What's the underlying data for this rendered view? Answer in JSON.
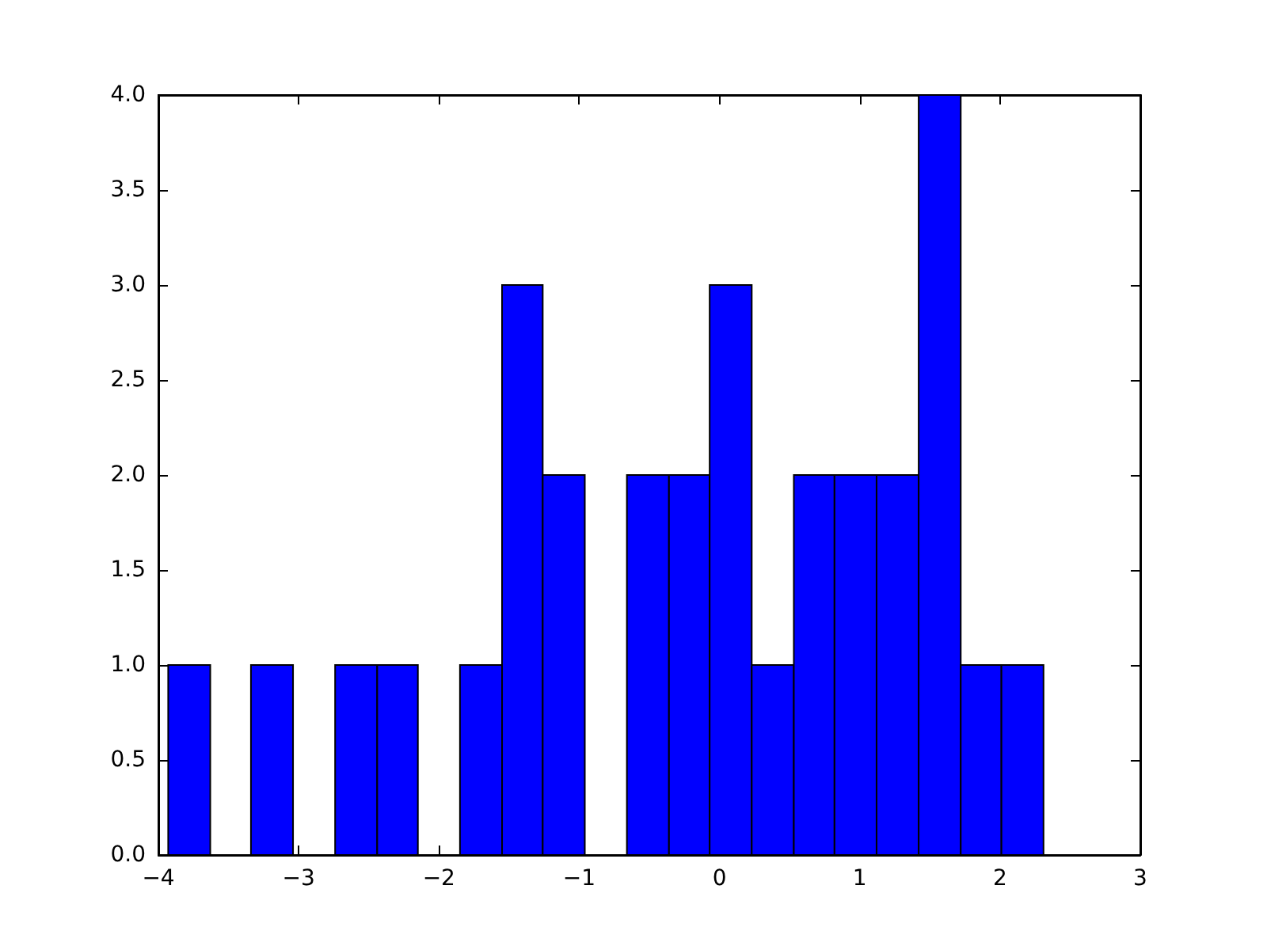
{
  "chart_data": {
    "type": "histogram",
    "color": "#0000ff",
    "bins": [
      -3.93,
      -3.63,
      -3.34,
      -3.04,
      -2.74,
      -2.44,
      -2.15,
      -1.85,
      -1.55,
      -1.26,
      -0.96,
      -0.66,
      -0.36,
      -0.07,
      0.23,
      0.53,
      0.82,
      1.12,
      1.42,
      1.72,
      2.01,
      2.31
    ],
    "values": [
      1,
      0,
      1,
      0,
      1,
      1,
      0,
      1,
      3,
      2,
      0,
      2,
      2,
      3,
      1,
      2,
      2,
      2,
      4,
      1,
      1
    ],
    "xlim": [
      -4,
      3
    ],
    "xticks": [
      -4,
      -3,
      -2,
      -1,
      0,
      1,
      2,
      3
    ],
    "ylim": [
      0,
      4
    ],
    "yticks": [
      {
        "value": 0,
        "label": "0.0"
      },
      0.5,
      {
        "value": 1,
        "label": "1.0"
      },
      1.5,
      {
        "value": 2,
        "label": "2.0"
      },
      2.5,
      {
        "value": 3,
        "label": "3.0"
      },
      3.5,
      {
        "value": 4,
        "label": "4.0"
      }
    ],
    "grid": false
  }
}
